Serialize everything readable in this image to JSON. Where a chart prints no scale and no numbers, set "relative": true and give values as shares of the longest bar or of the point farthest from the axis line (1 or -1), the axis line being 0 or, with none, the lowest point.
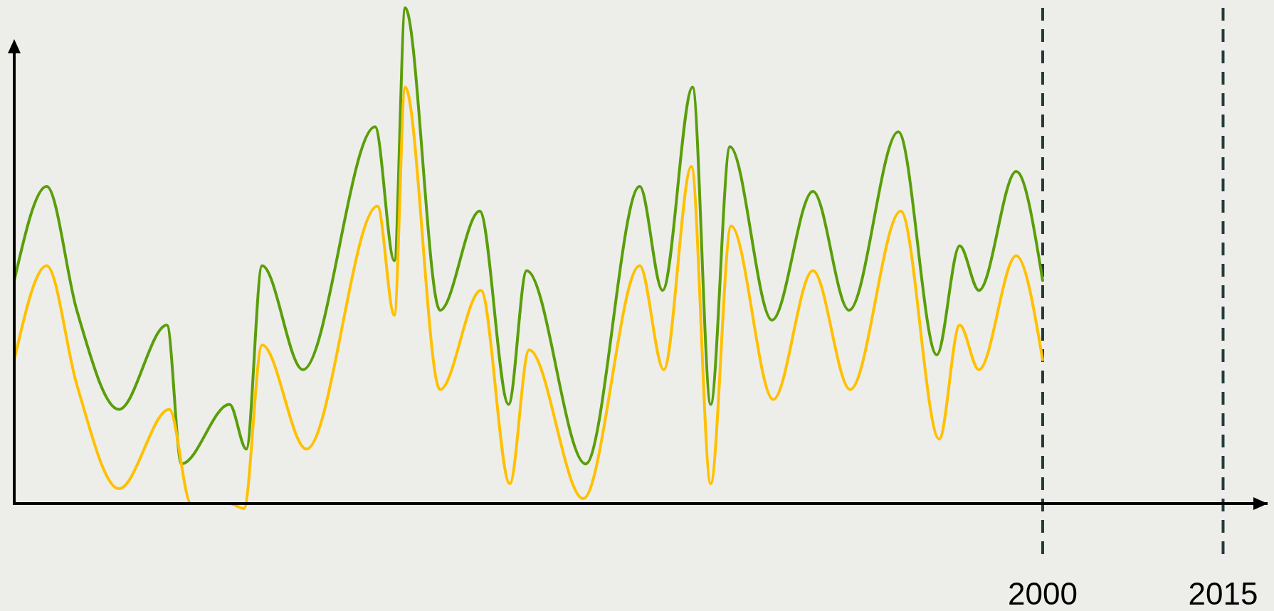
{
  "chart_data": {
    "type": "line",
    "relative": true,
    "xlim": [
      1914.5,
      2018.7
    ],
    "xticks": [
      2000,
      2015
    ],
    "tick_labels": "x",
    "marker": "none",
    "line_style": "solid",
    "series": [
      {
        "color": "#5a9e0a",
        "x": [
          1914.5,
          1917.2,
          1919.7,
          1923.2,
          1927.2,
          1928.4,
          1932.4,
          1933.8,
          1935.1,
          1938.5,
          1944.5,
          1946.1,
          1947.0,
          1949.9,
          1953.2,
          1955.6,
          1957.1,
          1962.0,
          1966.5,
          1968.4,
          1970.9,
          1972.4,
          1974.0,
          1977.5,
          1980.9,
          1983.9,
          1988.0,
          1991.2,
          1993.1,
          1994.7,
          1997.8,
          2000
        ],
        "values": [
          0.45,
          0.64,
          0.39,
          0.19,
          0.36,
          0.08,
          0.2,
          0.11,
          0.48,
          0.27,
          0.76,
          0.49,
          1,
          0.39,
          0.59,
          0.2,
          0.47,
          0.08,
          0.64,
          0.43,
          0.84,
          0.2,
          0.72,
          0.37,
          0.63,
          0.39,
          0.75,
          0.3,
          0.52,
          0.43,
          0.67,
          0.45
        ]
      },
      {
        "color": "#ffc000",
        "x": [
          1914.5,
          1917.2,
          1919.7,
          1923.2,
          1927.4,
          1929.2,
          1932.4,
          1933.6,
          1935.1,
          1938.8,
          1944.7,
          1946.1,
          1947.0,
          1949.9,
          1953.3,
          1955.7,
          1957.3,
          1961.8,
          1966.5,
          1968.5,
          1970.8,
          1972.4,
          1974.1,
          1977.6,
          1980.9,
          1984.0,
          1988.2,
          1991.4,
          1993.1,
          1994.7,
          1997.8,
          2000
        ],
        "values": [
          0.29,
          0.48,
          0.24,
          0.03,
          0.19,
          0,
          0,
          -0.01,
          0.32,
          0.11,
          0.6,
          0.38,
          0.84,
          0.23,
          0.43,
          0.04,
          0.31,
          0.01,
          0.48,
          0.27,
          0.68,
          0.04,
          0.56,
          0.21,
          0.47,
          0.23,
          0.59,
          0.13,
          0.36,
          0.27,
          0.5,
          0.29
        ]
      }
    ],
    "ref_lines": [
      {
        "axis": "x",
        "value": 2000,
        "color": "#243a3a",
        "line_style": "dashed"
      },
      {
        "axis": "x",
        "value": 2015,
        "color": "#243a3a",
        "line_style": "dashed"
      }
    ]
  }
}
